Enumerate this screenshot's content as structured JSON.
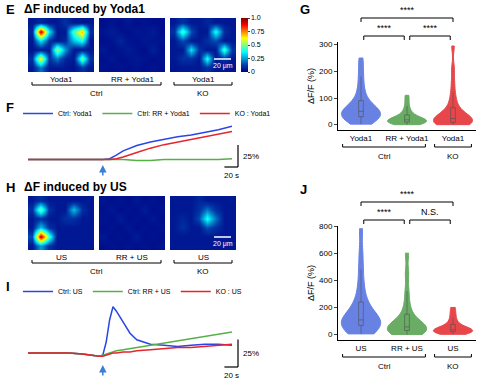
{
  "chart_data": [
    {
      "panel": "E",
      "type": "heatmap",
      "title": "ΔF induced by Yoda1",
      "images": [
        {
          "label": "Yoda1",
          "cells": [
            [
              0.05,
              0.08,
              0.05,
              0.05,
              0.1,
              0.05,
              0.04,
              0.05
            ],
            [
              0.08,
              0.95,
              0.35,
              0.05,
              0.05,
              0.45,
              0.7,
              0.1
            ],
            [
              0.05,
              0.35,
              0.1,
              0.05,
              0.08,
              0.3,
              0.4,
              0.05
            ],
            [
              0.04,
              0.05,
              0.05,
              0.55,
              0.25,
              0.05,
              0.05,
              0.05
            ],
            [
              0.1,
              0.65,
              0.1,
              0.2,
              0.08,
              0.05,
              0.5,
              0.1
            ],
            [
              0.05,
              0.2,
              0.05,
              0.05,
              0.05,
              0.04,
              0.1,
              0.05
            ]
          ]
        },
        {
          "label": "RR + Yoda1",
          "cells": [
            [
              0.03,
              0.04,
              0.03,
              0.05,
              0.03,
              0.04,
              0.03,
              0.03
            ],
            [
              0.04,
              0.06,
              0.04,
              0.03,
              0.05,
              0.04,
              0.06,
              0.03
            ],
            [
              0.03,
              0.04,
              0.08,
              0.04,
              0.03,
              0.05,
              0.04,
              0.04
            ],
            [
              0.05,
              0.03,
              0.04,
              0.06,
              0.04,
              0.03,
              0.07,
              0.03
            ],
            [
              0.03,
              0.05,
              0.03,
              0.04,
              0.05,
              0.04,
              0.03,
              0.04
            ],
            [
              0.04,
              0.03,
              0.04,
              0.03,
              0.04,
              0.03,
              0.04,
              0.03
            ]
          ]
        },
        {
          "label": "Yoda1",
          "cells": [
            [
              0.05,
              0.1,
              0.05,
              0.05,
              0.08,
              0.05,
              0.05,
              0.05
            ],
            [
              0.1,
              0.45,
              0.15,
              0.05,
              0.05,
              0.4,
              0.1,
              0.05
            ],
            [
              0.05,
              0.15,
              0.05,
              0.05,
              0.1,
              0.15,
              0.05,
              0.05
            ],
            [
              0.05,
              0.05,
              0.35,
              0.1,
              0.05,
              0.05,
              0.45,
              0.1
            ],
            [
              0.05,
              0.1,
              0.1,
              0.05,
              0.4,
              0.05,
              0.1,
              0.05
            ],
            [
              0.04,
              0.05,
              0.05,
              0.05,
              0.1,
              0.05,
              0.05,
              0.04
            ]
          ]
        }
      ],
      "groups": [
        "Ctrl",
        "Ctrl",
        "KO"
      ],
      "scale_bar_label": "20 μm",
      "colorbar": {
        "range": [
          0,
          1
        ],
        "ticks": [
          0,
          0.25,
          0.5,
          0.75,
          {
            "value": 1,
            "label": "1.0"
          }
        ]
      }
    },
    {
      "panel": "F",
      "type": "line",
      "x": [
        0,
        20,
        40,
        60,
        80,
        100,
        110,
        120,
        130,
        140,
        160,
        180,
        200,
        220,
        240,
        260,
        280,
        300
      ],
      "series": [
        {
          "name": "Ctrl: Yoda1",
          "color": "#2946e6",
          "values": [
            0,
            0,
            0,
            0,
            0,
            0,
            0,
            1,
            5,
            10,
            16,
            20,
            23,
            26,
            28,
            31,
            34,
            38
          ]
        },
        {
          "name": "Ctrl: RR + Yoda1",
          "color": "#56b047",
          "values": [
            0,
            0,
            0,
            0,
            0,
            0,
            0,
            0,
            0,
            0,
            -1,
            -1,
            0,
            0,
            0,
            0,
            0,
            1
          ]
        },
        {
          "name": "KO : Yoda1",
          "color": "#e5252b",
          "values": [
            0,
            0,
            0,
            0,
            0,
            0,
            0,
            0,
            1,
            3,
            8,
            13,
            17,
            20,
            23,
            26,
            29,
            32
          ]
        }
      ],
      "xlim": [
        0,
        300
      ],
      "ylim": [
        -5,
        45
      ],
      "tick_labels": false,
      "legend": "top left",
      "stimulus": 110,
      "scale_bars": {
        "x": 20,
        "x_label": "20 s",
        "y": 25,
        "y_label": "25%"
      }
    },
    {
      "panel": "G",
      "type": "violin",
      "categories": [
        "Yoda1",
        "RR + Yoda1",
        "Yoda1"
      ],
      "groups": [
        "Ctrl",
        "Ctrl",
        "KO"
      ],
      "colors": [
        "#4e6de0",
        "#4f9e4a",
        "#e3262b"
      ],
      "values": [
        [
          2,
          8,
          12,
          18,
          22,
          26,
          30,
          33,
          36,
          39,
          42,
          45,
          48,
          52,
          56,
          60,
          65,
          72,
          80,
          90,
          105,
          125,
          150,
          180,
          215,
          250
        ],
        [
          0,
          2,
          4,
          6,
          8,
          9,
          11,
          12,
          14,
          15,
          16,
          18,
          20,
          22,
          25,
          28,
          32,
          38,
          45,
          55,
          70,
          90,
          110
        ],
        [
          0,
          1,
          2,
          4,
          5,
          7,
          9,
          11,
          13,
          15,
          17,
          20,
          23,
          26,
          30,
          35,
          42,
          50,
          60,
          75,
          95,
          120,
          160,
          210,
          295
        ]
      ],
      "ylabel": "ΔF/F (%)",
      "ylim": [
        -20,
        310
      ],
      "yticks": [
        0,
        100,
        200,
        300
      ],
      "comparisons": [
        {
          "from": 0,
          "to": 2,
          "label": "****"
        },
        {
          "from": 0,
          "to": 1,
          "label": "****"
        },
        {
          "from": 1,
          "to": 2,
          "label": "****"
        }
      ]
    },
    {
      "panel": "H",
      "type": "heatmap",
      "title": "ΔF induced by US",
      "images": [
        {
          "label": "US",
          "cells": [
            [
              0.05,
              0.1,
              0.05,
              0.05,
              0.05,
              0.05,
              0.05,
              0.05
            ],
            [
              0.1,
              0.5,
              0.1,
              0.05,
              0.05,
              0.3,
              0.1,
              0.05
            ],
            [
              0.05,
              0.1,
              0.05,
              0.05,
              0.1,
              0.1,
              0.05,
              0.05
            ],
            [
              0.05,
              0.3,
              0.1,
              0.05,
              0.05,
              0.05,
              0.05,
              0.05
            ],
            [
              0.15,
              0.95,
              0.45,
              0.05,
              0.05,
              0.05,
              0.05,
              0.05
            ],
            [
              0.05,
              0.25,
              0.1,
              0.05,
              0.05,
              0.05,
              0.05,
              0.05
            ]
          ]
        },
        {
          "label": "RR + US",
          "cells": [
            [
              0.04,
              0.03,
              0.04,
              0.03,
              0.05,
              0.03,
              0.04,
              0.03
            ],
            [
              0.03,
              0.05,
              0.03,
              0.04,
              0.03,
              0.06,
              0.03,
              0.04
            ],
            [
              0.04,
              0.03,
              0.06,
              0.03,
              0.04,
              0.03,
              0.05,
              0.03
            ],
            [
              0.03,
              0.04,
              0.03,
              0.05,
              0.03,
              0.04,
              0.03,
              0.04
            ],
            [
              0.05,
              0.03,
              0.04,
              0.03,
              0.06,
              0.03,
              0.04,
              0.03
            ],
            [
              0.03,
              0.04,
              0.03,
              0.04,
              0.03,
              0.04,
              0.03,
              0.04
            ]
          ]
        },
        {
          "label": "US",
          "cells": [
            [
              0.05,
              0.05,
              0.05,
              0.08,
              0.05,
              0.05,
              0.05,
              0.05
            ],
            [
              0.05,
              0.05,
              0.05,
              0.1,
              0.2,
              0.1,
              0.05,
              0.05
            ],
            [
              0.05,
              0.08,
              0.05,
              0.15,
              0.4,
              0.2,
              0.05,
              0.05
            ],
            [
              0.05,
              0.1,
              0.05,
              0.05,
              0.15,
              0.1,
              0.05,
              0.05
            ],
            [
              0.05,
              0.05,
              0.05,
              0.05,
              0.05,
              0.05,
              0.05,
              0.05
            ],
            [
              0.05,
              0.05,
              0.05,
              0.05,
              0.05,
              0.05,
              0.05,
              0.05
            ]
          ]
        }
      ],
      "groups": [
        "Ctrl",
        "Ctrl",
        "KO"
      ],
      "scale_bar_label": "20 μm"
    },
    {
      "panel": "I",
      "type": "line",
      "x": [
        0,
        20,
        40,
        60,
        80,
        100,
        105,
        110,
        115,
        120,
        125,
        130,
        140,
        150,
        160,
        180,
        200,
        220,
        240,
        260,
        280,
        300
      ],
      "series": [
        {
          "name": "Ctrl: US",
          "color": "#2946e6",
          "values": [
            0,
            0,
            0,
            0,
            -1,
            -3,
            -3,
            -2,
            10,
            30,
            42,
            38,
            28,
            18,
            12,
            8,
            7,
            6,
            7,
            8,
            8,
            7
          ]
        },
        {
          "name": "Ctrl: RR + US",
          "color": "#56b047",
          "values": [
            0,
            0,
            0,
            0,
            -1,
            -3,
            -3,
            -2,
            -1,
            0,
            1,
            2,
            3,
            4,
            5,
            7,
            9,
            11,
            13,
            15,
            17,
            19
          ]
        },
        {
          "name": "KO : US",
          "color": "#e5252b",
          "values": [
            0,
            0,
            0,
            0,
            -1,
            -3,
            -3,
            -3,
            -2,
            -1,
            0,
            0,
            1,
            1,
            2,
            3,
            4,
            5,
            5,
            6,
            7,
            8
          ]
        }
      ],
      "xlim": [
        0,
        300
      ],
      "ylim": [
        -10,
        50
      ],
      "tick_labels": false,
      "legend": "top left",
      "stimulus": 110,
      "scale_bars": {
        "x": 20,
        "x_label": "20 s",
        "y": 25,
        "y_label": "25%"
      }
    },
    {
      "panel": "J",
      "type": "violin",
      "categories": [
        "US",
        "RR + US",
        "US"
      ],
      "groups": [
        "Ctrl",
        "Ctrl",
        "KO"
      ],
      "colors": [
        "#4e6de0",
        "#4f9e4a",
        "#e3262b"
      ],
      "values": [
        [
          5,
          20,
          35,
          48,
          58,
          66,
          72,
          78,
          84,
          90,
          98,
          108,
          120,
          135,
          155,
          180,
          210,
          250,
          300,
          380,
          480,
          600,
          780
        ],
        [
          0,
          8,
          15,
          22,
          28,
          33,
          38,
          42,
          47,
          53,
          60,
          70,
          85,
          105,
          130,
          170,
          230,
          320,
          450,
          600
        ],
        [
          2,
          8,
          14,
          18,
          22,
          25,
          28,
          31,
          34,
          38,
          43,
          50,
          60,
          75,
          95,
          125,
          160,
          200
        ]
      ],
      "ylabel": "ΔF/F (%)",
      "ylim": [
        -40,
        800
      ],
      "yticks": [
        0,
        200,
        400,
        600,
        800
      ],
      "comparisons": [
        {
          "from": 0,
          "to": 2,
          "label": "****"
        },
        {
          "from": 0,
          "to": 1,
          "label": "****"
        },
        {
          "from": 1,
          "to": 2,
          "label": "N.S."
        }
      ]
    }
  ]
}
